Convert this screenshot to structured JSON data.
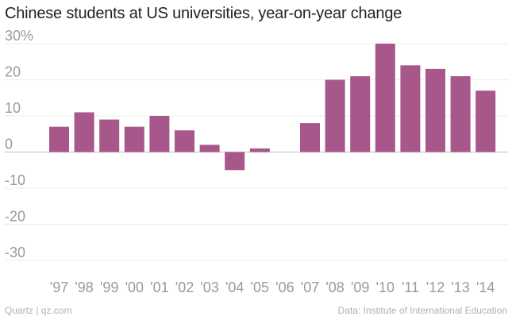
{
  "chart_data": {
    "type": "bar",
    "title": "Chinese students at US universities, year-on-year change",
    "categories": [
      "'97",
      "'98",
      "'99",
      "'00",
      "'01",
      "'02",
      "'03",
      "'04",
      "'05",
      "'06",
      "'07",
      "'08",
      "'09",
      "'10",
      "'11",
      "'12",
      "'13",
      "'14"
    ],
    "values": [
      7,
      11,
      9,
      7,
      10,
      6,
      2,
      -5,
      1,
      null,
      8,
      20,
      21,
      30,
      24,
      23,
      21,
      17
    ],
    "ylim": [
      -30,
      30
    ],
    "yticks": [
      30,
      20,
      10,
      0,
      -10,
      -20,
      -30
    ],
    "ytick_labels": [
      "30%",
      "20",
      "10",
      "0",
      "-10",
      "-20",
      "-30"
    ],
    "xlabel": "",
    "ylabel": "",
    "grid": true,
    "bar_color": "#a8578a"
  },
  "footer": {
    "source_left": "Quartz | qz.com",
    "source_right": "Data: Institute of International Education"
  }
}
